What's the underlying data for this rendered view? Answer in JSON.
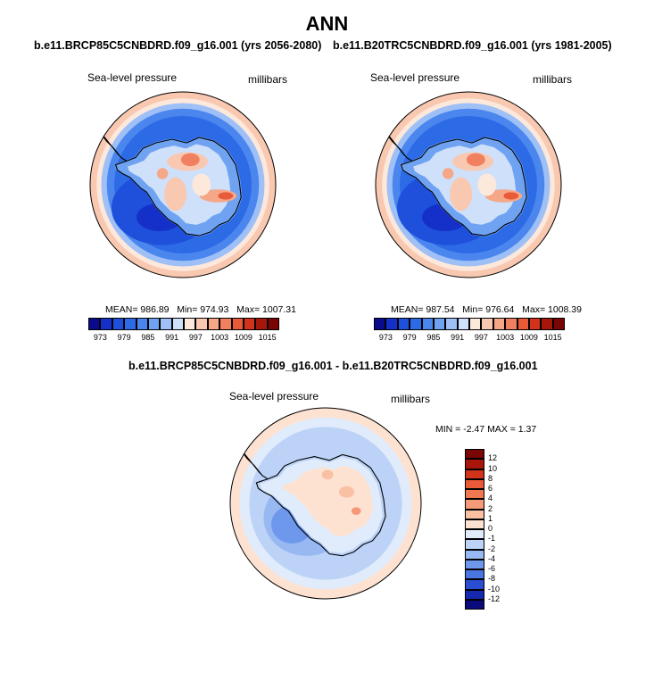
{
  "page": {
    "title": "ANN"
  },
  "panels": [
    {
      "subtitle": "b.e11.BRCP85C5CNBDRD.f09_g16.001 (yrs 2056-2080)",
      "left_label": "Sea-level pressure",
      "right_label": "millibars",
      "mean_text": "MEAN= 986.89",
      "min_text": "Min= 974.93",
      "max_text": "Max= 1007.31",
      "colorbar_ticks": [
        "973",
        "979",
        "985",
        "991",
        "997",
        "1003",
        "1009",
        "1015"
      ]
    },
    {
      "subtitle": "b.e11.B20TRC5CNBDRD.f09_g16.001 (yrs 1981-2005)",
      "left_label": "Sea-level pressure",
      "right_label": "millibars",
      "mean_text": "MEAN= 987.54",
      "min_text": "Min= 976.64",
      "max_text": "Max= 1008.39",
      "colorbar_ticks": [
        "973",
        "979",
        "985",
        "991",
        "997",
        "1003",
        "1009",
        "1015"
      ]
    }
  ],
  "diff_panel": {
    "subtitle": "b.e11.BRCP85C5CNBDRD.f09_g16.001 - b.e11.B20TRC5CNBDRD.f09_g16.001",
    "left_label": "Sea-level pressure",
    "right_label": "millibars",
    "minmax_text": "MIN =  -2.47 MAX =   1.37",
    "colorbar_ticks": [
      "12",
      "10",
      "8",
      "6",
      "4",
      "2",
      "1",
      "0",
      "-1",
      "-2",
      "-4",
      "-6",
      "-8",
      "-10",
      "-12"
    ]
  },
  "colors": {
    "abs_scale": [
      "#0a0a8c",
      "#1530c8",
      "#1e50dc",
      "#2d6ae6",
      "#4a86ee",
      "#6fa3f2",
      "#9ec0f6",
      "#cfe0fa",
      "#fde8dc",
      "#f9c8b0",
      "#f5a788",
      "#f08060",
      "#e85a38",
      "#d2331a",
      "#a8150a",
      "#7a0505"
    ],
    "diff_scale": [
      "#7a0505",
      "#a8150a",
      "#d2331a",
      "#e85a38",
      "#f07850",
      "#f59a78",
      "#f9c0a4",
      "#fde2d2",
      "#e0ecfb",
      "#bcd2f6",
      "#98b8f2",
      "#6e98ec",
      "#4a76e2",
      "#2a4ed2",
      "#1528b0",
      "#0a0a7a"
    ],
    "land_outline": "#000000"
  }
}
